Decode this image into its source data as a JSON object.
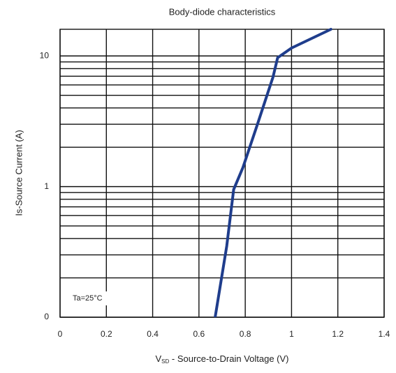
{
  "chart_data": {
    "type": "line",
    "title": "Body-diode characteristics",
    "y_label": "Is-Source Current (A)",
    "x_label_main": "V",
    "x_label_sub": "SD",
    "x_label_rest": " - Source-to-Drain Voltage (V)",
    "annotation": "Ta=25°C",
    "x": [
      0.67,
      0.72,
      0.75,
      0.79,
      0.85,
      0.92,
      0.94,
      1.0,
      1.17
    ],
    "series": [
      {
        "name": "Is",
        "color": "#1f3d8c",
        "values": [
          0.1,
          0.35,
          0.95,
          1.4,
          2.9,
          6.9,
          9.7,
          11.5,
          16
        ]
      }
    ],
    "xlim": [
      0,
      1.4
    ],
    "xticks": [
      0,
      0.2,
      0.4,
      0.6,
      0.8,
      1,
      1.2,
      1.4
    ],
    "ylim": [
      0.1,
      16
    ],
    "yticks": [
      {
        "value": 0.1,
        "label": "0"
      },
      1,
      10
    ],
    "y_log": true,
    "grid": true,
    "minor_grid": true
  }
}
